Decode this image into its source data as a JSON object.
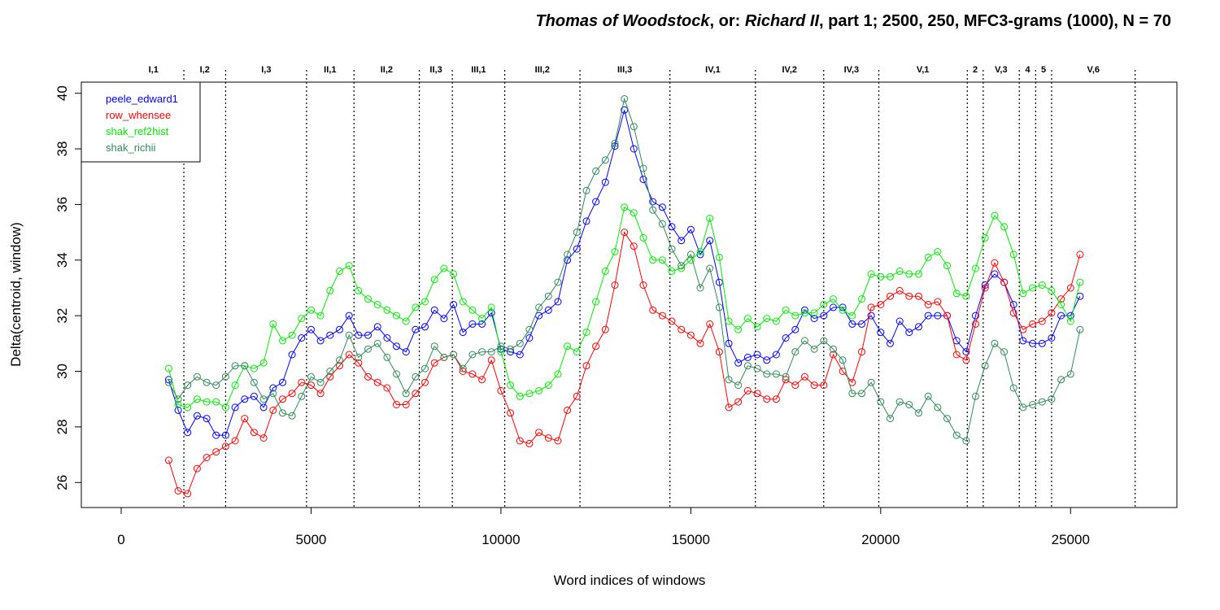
{
  "chart_data": {
    "type": "line",
    "title_parts": [
      {
        "text": "Thomas of Woodstock",
        "italic": true
      },
      {
        "text": ", or: ",
        "italic": false
      },
      {
        "text": "Richard II",
        "italic": true
      },
      {
        "text": ", part 1; 2500, 250, MFC3-grams (1000), N = 70",
        "italic": false
      }
    ],
    "xlabel": "Word indices of windows",
    "ylabel": "Delta(centroid, window)",
    "xlim": [
      -1050,
      27800
    ],
    "ylim": [
      25.1,
      40.4
    ],
    "xticks": [
      0,
      5000,
      10000,
      15000,
      20000,
      25000
    ],
    "xtick_labels": [
      "0",
      "5000",
      "10000",
      "15000",
      "20000",
      "25000"
    ],
    "yticks": [
      26,
      28,
      30,
      32,
      34,
      36,
      38,
      40
    ],
    "ytick_labels": [
      "26",
      "28",
      "30",
      "32",
      "34",
      "36",
      "38",
      "40"
    ],
    "legend_position": "top-left",
    "scene_boundaries": [
      1650,
      2750,
      4880,
      6130,
      7850,
      8720,
      10100,
      12080,
      14450,
      16700,
      18500,
      19950,
      22280,
      22700,
      23650,
      24080,
      24500,
      26700
    ],
    "scene_labels": [
      {
        "label": "I,1",
        "x": 850
      },
      {
        "label": "I,2",
        "x": 2200
      },
      {
        "label": "I,3",
        "x": 3820
      },
      {
        "label": "II,1",
        "x": 5500
      },
      {
        "label": "II,2",
        "x": 6990
      },
      {
        "label": "II,3",
        "x": 8290
      },
      {
        "label": "III,1",
        "x": 9410
      },
      {
        "label": "III,2",
        "x": 11090
      },
      {
        "label": "III,3",
        "x": 13260
      },
      {
        "label": "IV,1",
        "x": 15580
      },
      {
        "label": "IV,2",
        "x": 17600
      },
      {
        "label": "IV,3",
        "x": 19230
      },
      {
        "label": "V,1",
        "x": 21110
      },
      {
        "label": "2",
        "x": 22490
      },
      {
        "label": "V,3",
        "x": 23170
      },
      {
        "label": "4",
        "x": 23870
      },
      {
        "label": "5",
        "x": 24290
      },
      {
        "label": "V,6",
        "x": 25600
      }
    ],
    "x": [
      1250,
      1500,
      1750,
      2000,
      2250,
      2500,
      2750,
      3000,
      3250,
      3500,
      3750,
      4000,
      4250,
      4500,
      4750,
      5000,
      5250,
      5500,
      5750,
      6000,
      6250,
      6500,
      6750,
      7000,
      7250,
      7500,
      7750,
      8000,
      8250,
      8500,
      8750,
      9000,
      9250,
      9500,
      9750,
      10000,
      10250,
      10500,
      10750,
      11000,
      11250,
      11500,
      11750,
      12000,
      12250,
      12500,
      12750,
      13000,
      13250,
      13500,
      13750,
      14000,
      14250,
      14500,
      14750,
      15000,
      15250,
      15500,
      15750,
      16000,
      16250,
      16500,
      16750,
      17000,
      17250,
      17500,
      17750,
      18000,
      18250,
      18500,
      18750,
      19000,
      19250,
      19500,
      19750,
      20000,
      20250,
      20500,
      20750,
      21000,
      21250,
      21500,
      21750,
      22000,
      22250,
      22500,
      22750,
      23000,
      23250,
      23500,
      23750,
      24000,
      24250,
      24500,
      24750,
      25000,
      25250
    ],
    "series": [
      {
        "name": "peele_edward1",
        "color": "#0000ff",
        "values": [
          29.7,
          28.6,
          27.8,
          28.4,
          28.3,
          27.7,
          27.7,
          28.7,
          29.0,
          29.1,
          28.7,
          29.4,
          29.6,
          30.6,
          31.2,
          31.5,
          31.1,
          31.3,
          31.5,
          32.0,
          31.3,
          31.3,
          31.6,
          31.2,
          30.9,
          30.7,
          31.5,
          31.6,
          32.2,
          31.9,
          32.4,
          31.4,
          31.7,
          31.7,
          32.1,
          30.8,
          30.7,
          30.6,
          31.2,
          32.0,
          32.2,
          32.5,
          34.0,
          34.4,
          35.4,
          36.1,
          36.8,
          38.1,
          39.4,
          38.0,
          36.9,
          36.1,
          35.9,
          35.2,
          34.7,
          35.1,
          34.2,
          34.7,
          33.2,
          31.0,
          30.3,
          30.5,
          30.6,
          30.4,
          30.6,
          31.2,
          31.5,
          32.2,
          31.9,
          32.0,
          32.3,
          32.3,
          31.7,
          31.7,
          32.0,
          31.4,
          31.0,
          31.8,
          31.4,
          31.6,
          32.0,
          32.0,
          32.0,
          31.1,
          30.7,
          32.0,
          33.1,
          33.5,
          33.2,
          32.4,
          31.1,
          31.0,
          31.0,
          31.2,
          32.0,
          32.0,
          32.7
        ]
      },
      {
        "name": "row_whensee",
        "color": "#ff0000",
        "values": [
          26.8,
          25.7,
          25.6,
          26.5,
          26.9,
          27.1,
          27.3,
          27.5,
          28.3,
          27.8,
          27.6,
          28.6,
          29.0,
          29.2,
          29.6,
          29.5,
          29.2,
          29.8,
          30.2,
          30.6,
          30.3,
          29.8,
          29.6,
          29.4,
          28.8,
          28.8,
          29.2,
          29.6,
          30.3,
          30.5,
          30.6,
          30.0,
          29.9,
          29.7,
          30.4,
          29.3,
          28.5,
          27.5,
          27.4,
          27.8,
          27.6,
          27.5,
          28.6,
          29.1,
          30.2,
          30.9,
          31.5,
          33.1,
          35.0,
          34.5,
          33.1,
          32.2,
          32.0,
          31.8,
          31.5,
          31.3,
          31.0,
          31.7,
          30.7,
          28.7,
          28.9,
          29.3,
          29.2,
          29.0,
          29.0,
          29.7,
          29.5,
          29.8,
          29.5,
          29.5,
          30.6,
          30.0,
          29.6,
          30.7,
          32.3,
          32.4,
          32.7,
          32.9,
          32.7,
          32.7,
          32.4,
          32.5,
          32.0,
          30.6,
          30.4,
          31.7,
          33.0,
          33.9,
          33.2,
          32.1,
          31.5,
          31.7,
          31.8,
          32.1,
          32.6,
          33.0,
          34.2
        ]
      },
      {
        "name": "shak_ref2hist",
        "color": "#00ee00",
        "values": [
          30.1,
          28.8,
          28.7,
          29.0,
          28.9,
          28.9,
          28.7,
          29.5,
          30.2,
          30.1,
          30.3,
          31.7,
          31.1,
          31.3,
          31.9,
          32.2,
          32.0,
          32.9,
          33.6,
          33.8,
          32.9,
          32.6,
          32.4,
          32.2,
          32.0,
          31.8,
          32.3,
          32.5,
          33.3,
          33.7,
          33.5,
          32.5,
          32.2,
          31.9,
          32.3,
          30.7,
          29.5,
          29.1,
          29.2,
          29.3,
          29.5,
          29.9,
          30.9,
          30.7,
          31.4,
          32.5,
          33.6,
          34.3,
          35.9,
          35.7,
          34.8,
          34.0,
          34.0,
          33.6,
          33.7,
          34.0,
          34.3,
          35.5,
          34.1,
          31.8,
          31.5,
          31.9,
          31.6,
          31.9,
          31.8,
          32.2,
          32.0,
          32.1,
          32.1,
          32.4,
          32.6,
          32.2,
          32.0,
          32.6,
          33.5,
          33.4,
          33.4,
          33.6,
          33.5,
          33.5,
          34.1,
          34.3,
          33.8,
          32.8,
          32.7,
          33.7,
          34.8,
          35.6,
          35.2,
          34.2,
          32.8,
          33.0,
          33.1,
          32.9,
          32.4,
          31.8,
          33.2
        ]
      },
      {
        "name": "shak_richii",
        "color": "#2e8b57",
        "values": [
          29.6,
          29.0,
          29.5,
          29.8,
          29.6,
          29.5,
          29.8,
          30.2,
          30.2,
          29.6,
          29.0,
          29.2,
          28.5,
          28.4,
          29.1,
          29.8,
          29.6,
          30.0,
          30.4,
          31.3,
          30.5,
          30.8,
          31.0,
          30.5,
          29.9,
          29.2,
          29.8,
          30.1,
          30.9,
          30.5,
          30.6,
          30.1,
          30.6,
          30.7,
          30.7,
          30.9,
          30.8,
          31.0,
          31.5,
          32.3,
          32.7,
          33.2,
          34.2,
          35.0,
          36.5,
          37.2,
          37.6,
          38.2,
          39.8,
          38.8,
          37.3,
          35.8,
          35.3,
          34.4,
          33.8,
          34.2,
          33.0,
          33.7,
          32.3,
          29.7,
          29.5,
          30.2,
          30.1,
          29.9,
          29.9,
          29.8,
          30.7,
          31.1,
          30.8,
          31.1,
          30.8,
          30.4,
          29.2,
          29.2,
          29.6,
          28.9,
          28.3,
          28.9,
          28.8,
          28.5,
          29.1,
          28.7,
          28.3,
          27.7,
          27.5,
          29.1,
          30.2,
          31.0,
          30.7,
          29.4,
          28.7,
          28.8,
          28.9,
          29.0,
          29.7,
          29.9,
          31.5
        ]
      }
    ]
  }
}
